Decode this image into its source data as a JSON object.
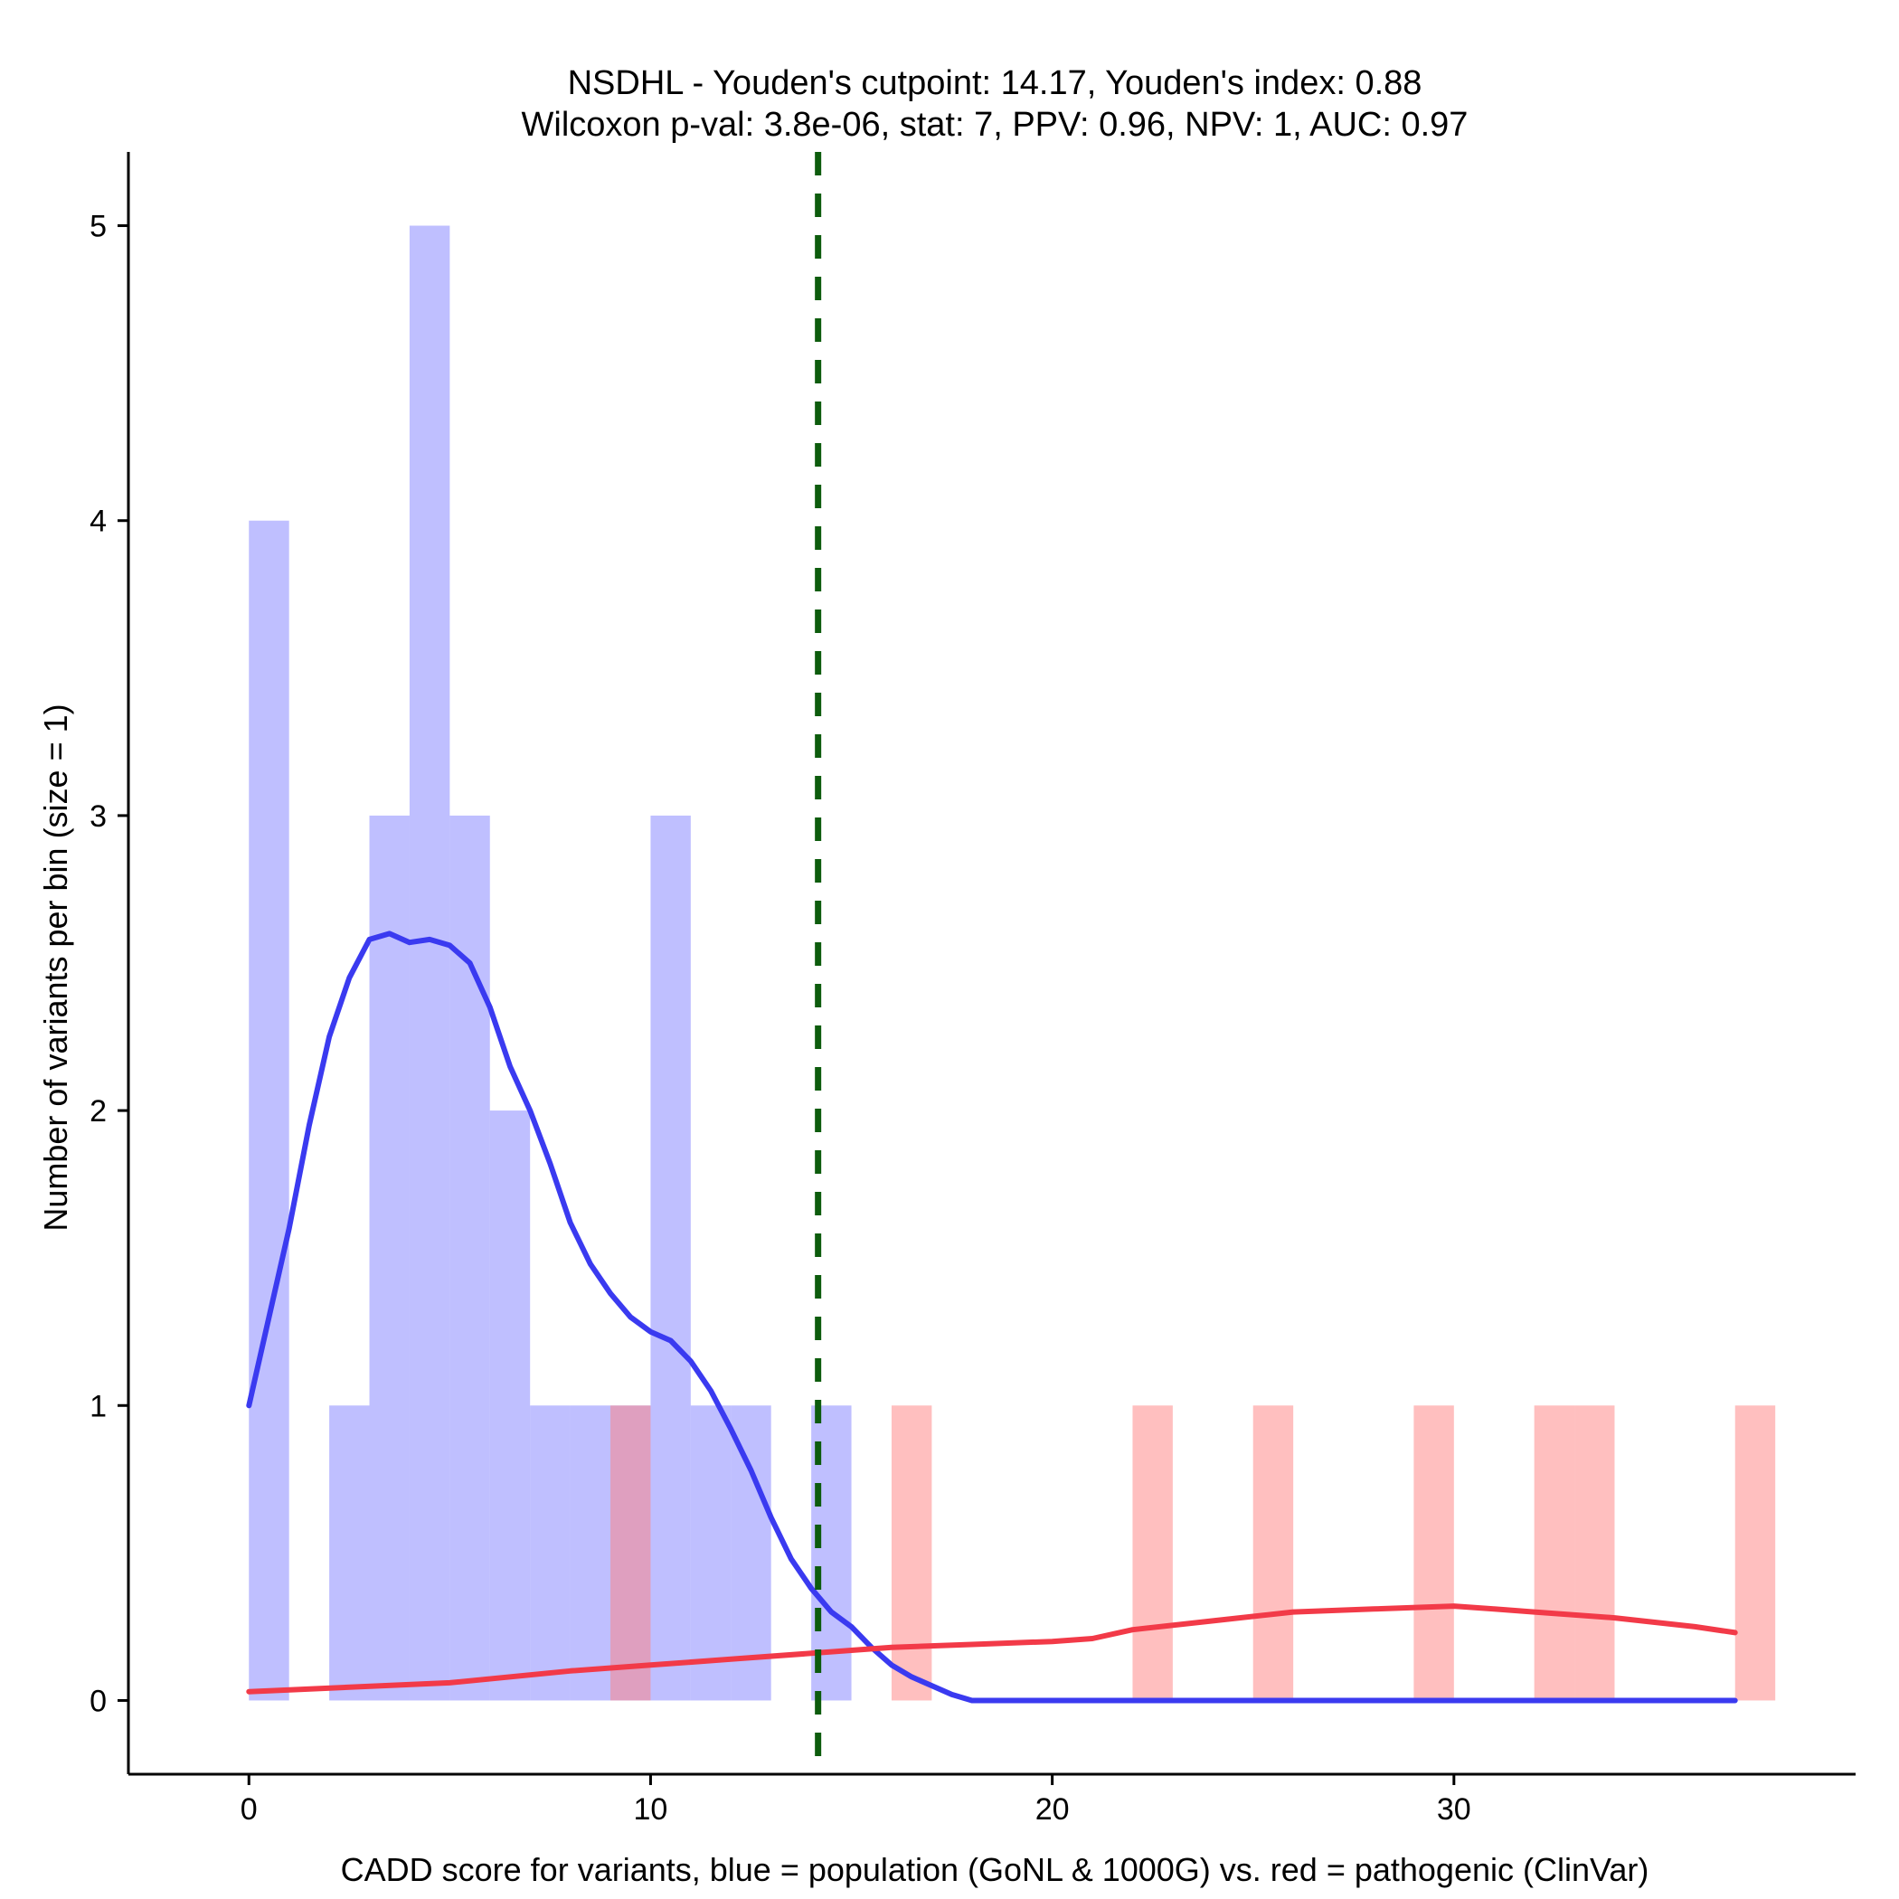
{
  "chart_data": {
    "type": "histogram",
    "title_line1": "NSDHL - Youden's cutpoint: 14.17, Youden's index: 0.88",
    "title_line2": "Wilcoxon p-val: 3.8e-06, stat: 7, PPV: 0.96, NPV: 1, AUC: 0.97",
    "xlabel": "CADD score for variants, blue = population (GoNL & 1000G) vs. red = pathogenic (ClinVar)",
    "ylabel": "Number of variants per bin (size = 1)",
    "xlim": [
      -3,
      40
    ],
    "ylim": [
      -0.25,
      5.25
    ],
    "x_ticks": [
      0,
      10,
      20,
      30
    ],
    "x_tick_labels": [
      "0",
      "10",
      "20",
      "30"
    ],
    "y_ticks": [
      0,
      1,
      2,
      3,
      4,
      5
    ],
    "y_tick_labels": [
      "0",
      "1",
      "2",
      "3",
      "4",
      "5"
    ],
    "cutpoint": 14.17,
    "colors": {
      "population": "#8080ff",
      "pathogenic": "#ff8080",
      "population_line": "#3a3af0",
      "pathogenic_line": "#f23a48",
      "cutpoint": "#0d5c0d",
      "axis": "#000000"
    },
    "series": [
      {
        "name": "population",
        "bins": [
          {
            "start": 0,
            "end": 1,
            "count": 4
          },
          {
            "start": 2,
            "end": 3,
            "count": 1
          },
          {
            "start": 3,
            "end": 4,
            "count": 3
          },
          {
            "start": 4,
            "end": 5,
            "count": 5
          },
          {
            "start": 5,
            "end": 6,
            "count": 3
          },
          {
            "start": 6,
            "end": 7,
            "count": 2
          },
          {
            "start": 7,
            "end": 8,
            "count": 1
          },
          {
            "start": 8,
            "end": 9,
            "count": 1
          },
          {
            "start": 9,
            "end": 10,
            "count": 1
          },
          {
            "start": 10,
            "end": 11,
            "count": 3
          },
          {
            "start": 11,
            "end": 12,
            "count": 1
          },
          {
            "start": 12,
            "end": 13,
            "count": 1
          },
          {
            "start": 14,
            "end": 15,
            "count": 1
          }
        ]
      },
      {
        "name": "pathogenic",
        "bins": [
          {
            "start": 9,
            "end": 10,
            "count": 1
          },
          {
            "start": 16,
            "end": 17,
            "count": 1
          },
          {
            "start": 22,
            "end": 23,
            "count": 1
          },
          {
            "start": 25,
            "end": 26,
            "count": 1
          },
          {
            "start": 29,
            "end": 30,
            "count": 1
          },
          {
            "start": 32,
            "end": 33,
            "count": 1
          },
          {
            "start": 33,
            "end": 34,
            "count": 1
          },
          {
            "start": 37,
            "end": 38,
            "count": 1
          }
        ]
      }
    ],
    "density_lines": [
      {
        "name": "population",
        "x": [
          0,
          0.5,
          1,
          1.5,
          2,
          2.5,
          3,
          3.5,
          4,
          4.5,
          5,
          5.5,
          6,
          6.5,
          7,
          7.5,
          8,
          8.5,
          9,
          9.5,
          10,
          10.5,
          11,
          11.5,
          12,
          12.5,
          13,
          13.5,
          14,
          14.5,
          15,
          15.5,
          16,
          16.5,
          17,
          17.5,
          18,
          18.2,
          19,
          20,
          25,
          30,
          37
        ],
        "y": [
          1.0,
          1.3,
          1.6,
          1.95,
          2.25,
          2.45,
          2.58,
          2.6,
          2.57,
          2.58,
          2.56,
          2.5,
          2.35,
          2.15,
          2.0,
          1.82,
          1.62,
          1.48,
          1.38,
          1.3,
          1.25,
          1.22,
          1.15,
          1.05,
          0.92,
          0.78,
          0.62,
          0.48,
          0.38,
          0.3,
          0.25,
          0.18,
          0.12,
          0.08,
          0.05,
          0.02,
          0.0,
          0.0,
          0.0,
          0.0,
          0.0,
          0.0,
          0.0
        ]
      },
      {
        "name": "pathogenic",
        "x": [
          0,
          5,
          8,
          10,
          12,
          14,
          16,
          18,
          20,
          21,
          22,
          24,
          26,
          28,
          30,
          31,
          32,
          34,
          36,
          37
        ],
        "y": [
          0.03,
          0.06,
          0.1,
          0.12,
          0.14,
          0.16,
          0.18,
          0.19,
          0.2,
          0.21,
          0.24,
          0.27,
          0.3,
          0.31,
          0.32,
          0.31,
          0.3,
          0.28,
          0.25,
          0.23
        ]
      }
    ]
  }
}
